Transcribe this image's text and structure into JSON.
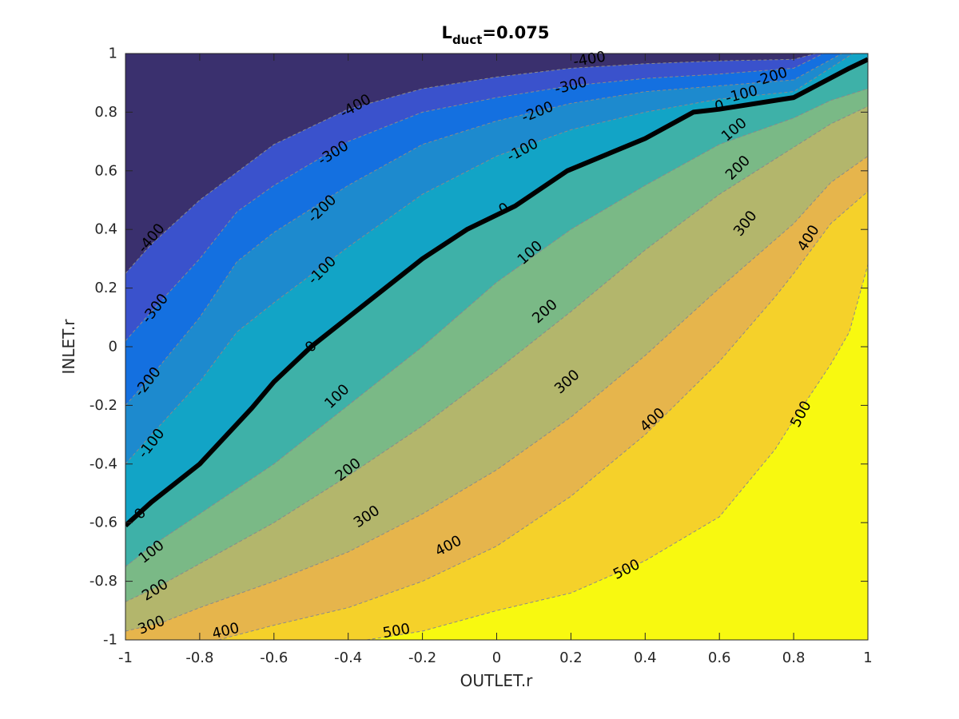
{
  "chart_data": {
    "type": "contour",
    "title": "L",
    "title_subscript": "duct",
    "title_suffix": "=0.075",
    "xlabel": "OUTLET.r",
    "ylabel": "INLET.r",
    "xlim": [
      -1,
      1
    ],
    "ylim": [
      -1,
      1
    ],
    "x_ticks": [
      "-1",
      "-0.8",
      "-0.6",
      "-0.4",
      "-0.2",
      "0",
      "0.2",
      "0.4",
      "0.6",
      "0.8",
      "1"
    ],
    "y_ticks": [
      "-1",
      "-0.8",
      "-0.6",
      "-0.4",
      "-0.2",
      "0",
      "0.2",
      "0.4",
      "0.6",
      "0.8",
      "1"
    ],
    "grid": false,
    "colormap": "parula",
    "levels": [
      -400,
      -300,
      -200,
      -100,
      0,
      100,
      200,
      300,
      400,
      500
    ],
    "fill_colors": [
      "#3a306e",
      "#3a52cc",
      "#1470e0",
      "#1d8ace",
      "#12a4c6",
      "#3eb1a8",
      "#7ab986",
      "#b3b66c",
      "#e6b54c",
      "#f5d12a",
      "#f8f910"
    ],
    "contour_lines": [
      {
        "level": -400,
        "points": [
          [
            -1,
            0.25
          ],
          [
            -0.93,
            0.35
          ],
          [
            -0.8,
            0.5
          ],
          [
            -0.6,
            0.69
          ],
          [
            -0.4,
            0.81
          ],
          [
            -0.2,
            0.88
          ],
          [
            0,
            0.92
          ],
          [
            0.2,
            0.95
          ],
          [
            0.4,
            0.965
          ],
          [
            0.6,
            0.975
          ],
          [
            0.8,
            0.98
          ],
          [
            0.86,
            1.0
          ]
        ]
      },
      {
        "level": -300,
        "points": [
          [
            -1,
            0.02
          ],
          [
            -0.93,
            0.12
          ],
          [
            -0.8,
            0.3
          ],
          [
            -0.7,
            0.46
          ],
          [
            -0.6,
            0.55
          ],
          [
            -0.4,
            0.7
          ],
          [
            -0.2,
            0.8
          ],
          [
            0,
            0.85
          ],
          [
            0.2,
            0.89
          ],
          [
            0.4,
            0.915
          ],
          [
            0.6,
            0.93
          ],
          [
            0.8,
            0.95
          ],
          [
            0.88,
            1.0
          ]
        ]
      },
      {
        "level": -200,
        "points": [
          [
            -1,
            -0.2
          ],
          [
            -0.93,
            -0.1
          ],
          [
            -0.8,
            0.1
          ],
          [
            -0.7,
            0.29
          ],
          [
            -0.6,
            0.39
          ],
          [
            -0.4,
            0.55
          ],
          [
            -0.2,
            0.69
          ],
          [
            0,
            0.77
          ],
          [
            0.2,
            0.83
          ],
          [
            0.4,
            0.87
          ],
          [
            0.6,
            0.89
          ],
          [
            0.8,
            0.91
          ],
          [
            0.93,
            1.0
          ]
        ]
      },
      {
        "level": -100,
        "points": [
          [
            -1,
            -0.4
          ],
          [
            -0.93,
            -0.3
          ],
          [
            -0.8,
            -0.12
          ],
          [
            -0.7,
            0.05
          ],
          [
            -0.6,
            0.15
          ],
          [
            -0.4,
            0.34
          ],
          [
            -0.2,
            0.52
          ],
          [
            0,
            0.65
          ],
          [
            0.2,
            0.74
          ],
          [
            0.4,
            0.8
          ],
          [
            0.6,
            0.845
          ],
          [
            0.8,
            0.87
          ],
          [
            0.96,
            1.0
          ]
        ]
      },
      {
        "level": 0,
        "points": [
          [
            -1,
            -0.61
          ],
          [
            -0.93,
            -0.53
          ],
          [
            -0.8,
            -0.4
          ],
          [
            -0.66,
            -0.21
          ],
          [
            -0.6,
            -0.12
          ],
          [
            -0.5,
            0.0
          ],
          [
            -0.4,
            0.1
          ],
          [
            -0.3,
            0.2
          ],
          [
            -0.2,
            0.3
          ],
          [
            -0.08,
            0.4
          ],
          [
            0.05,
            0.48
          ],
          [
            0.19,
            0.6
          ],
          [
            0.4,
            0.71
          ],
          [
            0.53,
            0.8
          ],
          [
            0.6,
            0.81
          ],
          [
            0.8,
            0.85
          ],
          [
            0.95,
            0.95
          ],
          [
            1.0,
            0.98
          ]
        ]
      },
      {
        "level": 100,
        "points": [
          [
            -1,
            -0.75
          ],
          [
            -0.93,
            -0.68
          ],
          [
            -0.8,
            -0.57
          ],
          [
            -0.6,
            -0.4
          ],
          [
            -0.4,
            -0.2
          ],
          [
            -0.2,
            0.0
          ],
          [
            0,
            0.22
          ],
          [
            0.2,
            0.4
          ],
          [
            0.4,
            0.55
          ],
          [
            0.6,
            0.69
          ],
          [
            0.8,
            0.78
          ],
          [
            0.9,
            0.84
          ],
          [
            1.0,
            0.88
          ]
        ]
      },
      {
        "level": 200,
        "points": [
          [
            -1,
            -0.87
          ],
          [
            -0.9,
            -0.81
          ],
          [
            -0.8,
            -0.74
          ],
          [
            -0.6,
            -0.6
          ],
          [
            -0.4,
            -0.44
          ],
          [
            -0.2,
            -0.27
          ],
          [
            0,
            -0.08
          ],
          [
            0.2,
            0.12
          ],
          [
            0.4,
            0.33
          ],
          [
            0.6,
            0.52
          ],
          [
            0.8,
            0.68
          ],
          [
            0.9,
            0.76
          ],
          [
            1.0,
            0.82
          ]
        ]
      },
      {
        "level": 300,
        "points": [
          [
            -1,
            -0.97
          ],
          [
            -0.9,
            -0.94
          ],
          [
            -0.8,
            -0.89
          ],
          [
            -0.6,
            -0.8
          ],
          [
            -0.4,
            -0.7
          ],
          [
            -0.2,
            -0.57
          ],
          [
            0,
            -0.42
          ],
          [
            0.2,
            -0.24
          ],
          [
            0.4,
            -0.03
          ],
          [
            0.6,
            0.2
          ],
          [
            0.8,
            0.42
          ],
          [
            0.9,
            0.56
          ],
          [
            1.0,
            0.65
          ]
        ]
      },
      {
        "level": 400,
        "points": [
          [
            -0.75,
            -1.0
          ],
          [
            -0.6,
            -0.95
          ],
          [
            -0.4,
            -0.89
          ],
          [
            -0.2,
            -0.8
          ],
          [
            0,
            -0.68
          ],
          [
            0.2,
            -0.51
          ],
          [
            0.4,
            -0.3
          ],
          [
            0.6,
            -0.05
          ],
          [
            0.75,
            0.17
          ],
          [
            0.8,
            0.25
          ],
          [
            0.9,
            0.42
          ],
          [
            1.0,
            0.53
          ]
        ]
      },
      {
        "level": 500,
        "points": [
          [
            -0.35,
            -1.0
          ],
          [
            -0.2,
            -0.97
          ],
          [
            0,
            -0.9
          ],
          [
            0.2,
            -0.84
          ],
          [
            0.4,
            -0.73
          ],
          [
            0.6,
            -0.58
          ],
          [
            0.75,
            -0.35
          ],
          [
            0.8,
            -0.25
          ],
          [
            0.9,
            -0.06
          ],
          [
            0.95,
            0.05
          ],
          [
            1.0,
            0.28
          ]
        ]
      }
    ],
    "contour_labels": [
      {
        "text": "-400",
        "x": 0.25,
        "y": 0.98,
        "angle": -10
      },
      {
        "text": "-400",
        "x": -0.38,
        "y": 0.82,
        "angle": -30
      },
      {
        "text": "-400",
        "x": -0.93,
        "y": 0.37,
        "angle": -50
      },
      {
        "text": "-300",
        "x": 0.2,
        "y": 0.89,
        "angle": -14
      },
      {
        "text": "-300",
        "x": -0.44,
        "y": 0.66,
        "angle": -32
      },
      {
        "text": "-300",
        "x": -0.92,
        "y": 0.13,
        "angle": -52
      },
      {
        "text": "-200",
        "x": 0.74,
        "y": 0.92,
        "angle": -18
      },
      {
        "text": "-200",
        "x": 0.11,
        "y": 0.8,
        "angle": -22
      },
      {
        "text": "-200",
        "x": -0.47,
        "y": 0.47,
        "angle": -44
      },
      {
        "text": "-200",
        "x": -0.94,
        "y": -0.12,
        "angle": -52
      },
      {
        "text": "-100",
        "x": 0.66,
        "y": 0.86,
        "angle": -15
      },
      {
        "text": "-100",
        "x": 0.07,
        "y": 0.67,
        "angle": -28
      },
      {
        "text": "-100",
        "x": -0.47,
        "y": 0.26,
        "angle": -45
      },
      {
        "text": "-100",
        "x": -0.93,
        "y": -0.33,
        "angle": -52
      },
      {
        "text": "0",
        "x": 0.6,
        "y": 0.82,
        "angle": -12
      },
      {
        "text": "0",
        "x": 0.02,
        "y": 0.47,
        "angle": -33
      },
      {
        "text": "0",
        "x": -0.5,
        "y": 0.0,
        "angle": -46
      },
      {
        "text": "0",
        "x": -0.96,
        "y": -0.57,
        "angle": -48
      },
      {
        "text": "100",
        "x": 0.64,
        "y": 0.74,
        "angle": -40
      },
      {
        "text": "100",
        "x": 0.09,
        "y": 0.32,
        "angle": -42
      },
      {
        "text": "100",
        "x": -0.43,
        "y": -0.17,
        "angle": -44
      },
      {
        "text": "100",
        "x": -0.93,
        "y": -0.7,
        "angle": -38
      },
      {
        "text": "200",
        "x": 0.65,
        "y": 0.61,
        "angle": -45
      },
      {
        "text": "200",
        "x": 0.13,
        "y": 0.12,
        "angle": -42
      },
      {
        "text": "200",
        "x": -0.4,
        "y": -0.42,
        "angle": -38
      },
      {
        "text": "200",
        "x": -0.92,
        "y": -0.83,
        "angle": -32
      },
      {
        "text": "300",
        "x": 0.67,
        "y": 0.42,
        "angle": -52
      },
      {
        "text": "300",
        "x": 0.19,
        "y": -0.12,
        "angle": -42
      },
      {
        "text": "300",
        "x": -0.35,
        "y": -0.58,
        "angle": -34
      },
      {
        "text": "300",
        "x": -0.93,
        "y": -0.95,
        "angle": -22
      },
      {
        "text": "400",
        "x": 0.84,
        "y": 0.37,
        "angle": -58
      },
      {
        "text": "400",
        "x": 0.42,
        "y": -0.25,
        "angle": -42
      },
      {
        "text": "400",
        "x": -0.13,
        "y": -0.68,
        "angle": -28
      },
      {
        "text": "400",
        "x": -0.73,
        "y": -0.97,
        "angle": -14
      },
      {
        "text": "500",
        "x": 0.82,
        "y": -0.23,
        "angle": -62
      },
      {
        "text": "500",
        "x": 0.35,
        "y": -0.76,
        "angle": -26
      },
      {
        "text": "500",
        "x": -0.27,
        "y": -0.97,
        "angle": -10
      }
    ]
  }
}
